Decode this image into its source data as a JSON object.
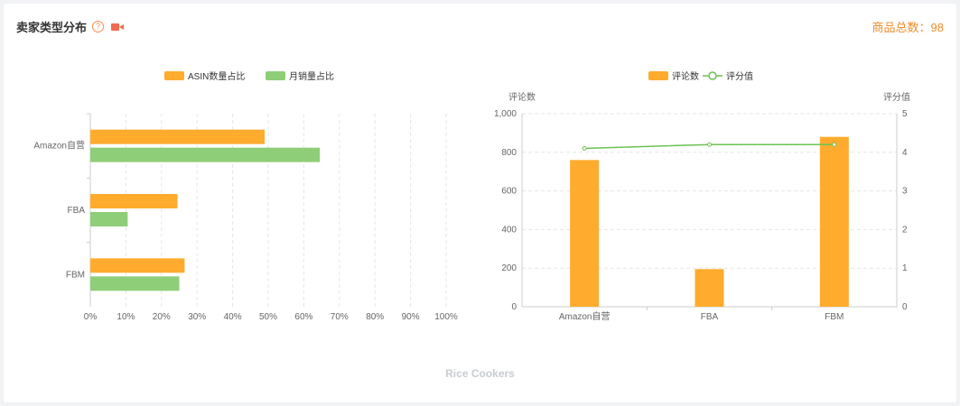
{
  "header": {
    "title": "卖家类型分布",
    "help_glyph": "?",
    "total_label": "商品总数：98"
  },
  "footer": {
    "caption": "Rice Cookers"
  },
  "colors": {
    "orange": "#ffab2e",
    "green": "#8fce78",
    "line": "#6cc251",
    "grid": "#e6e6e6",
    "axis_text": "#666666"
  },
  "chart_data": [
    {
      "type": "bar",
      "orientation": "horizontal",
      "categories": [
        "Amazon自营",
        "FBA",
        "FBM"
      ],
      "series": [
        {
          "name": "ASIN数量占比",
          "color": "#ffab2e",
          "values": [
            49,
            24.5,
            26.5
          ]
        },
        {
          "name": "月销量占比",
          "color": "#8fce78",
          "values": [
            64.5,
            10.5,
            25
          ]
        }
      ],
      "xlim": [
        0,
        100
      ],
      "x_ticks": [
        "0%",
        "10%",
        "20%",
        "30%",
        "40%",
        "50%",
        "60%",
        "70%",
        "80%",
        "90%",
        "100%"
      ],
      "legend_position": "top-center",
      "grid": true
    },
    {
      "type": "bar+line",
      "categories": [
        "Amazon自营",
        "FBA",
        "FBM"
      ],
      "bar_series": {
        "name": "评论数",
        "color": "#ffab2e",
        "values": [
          760,
          195,
          880
        ]
      },
      "line_series": {
        "name": "评分值",
        "color": "#6cc251",
        "values": [
          4.1,
          4.2,
          4.2
        ]
      },
      "ylabel_left": "评论数",
      "ylabel_right": "评分值",
      "ylim_left": [
        0,
        1000
      ],
      "ylim_right": [
        0,
        5
      ],
      "y_ticks_left": [
        "0",
        "200",
        "400",
        "600",
        "800",
        "1,000"
      ],
      "y_ticks_right": [
        "0",
        "1",
        "2",
        "3",
        "4",
        "5"
      ],
      "legend_position": "top-center",
      "grid": true
    }
  ]
}
